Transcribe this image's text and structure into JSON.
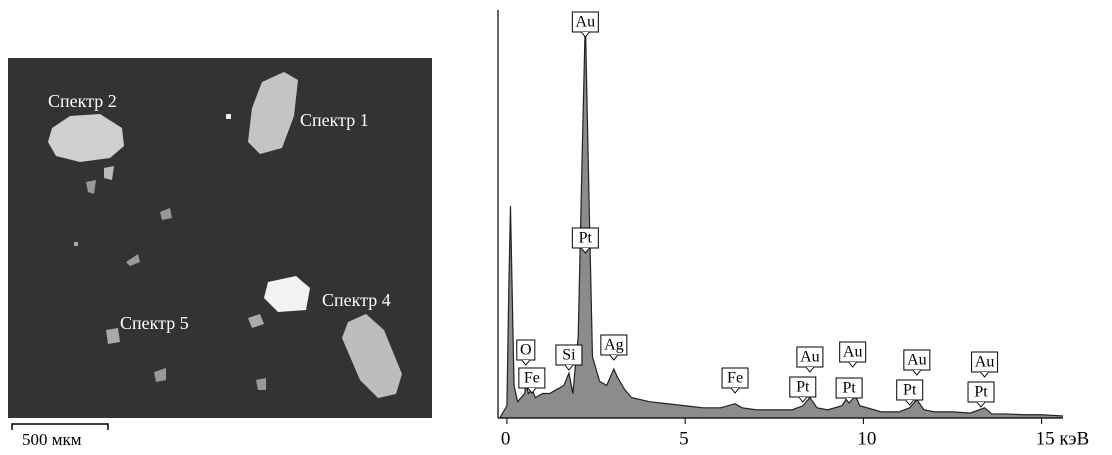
{
  "image": {
    "labels": [
      "Спектр 2",
      "Спектр 1",
      "Спектр 4",
      "Спектр 5"
    ],
    "scale_bar": "500 мкм"
  },
  "chart_data": {
    "type": "area",
    "x": [
      -0.2,
      0,
      0.05,
      0.1,
      0.15,
      0.2,
      0.3,
      0.4,
      0.5,
      0.53,
      0.6,
      0.7,
      0.8,
      1.0,
      1.2,
      1.4,
      1.6,
      1.74,
      1.85,
      2.0,
      2.1,
      2.2,
      2.3,
      2.4,
      2.6,
      2.8,
      3.0,
      3.1,
      3.3,
      3.5,
      4.0,
      4.5,
      5.0,
      5.5,
      6.0,
      6.4,
      6.6,
      7.0,
      7.5,
      8.0,
      8.3,
      8.5,
      8.7,
      9.0,
      9.4,
      9.7,
      9.9,
      10.5,
      11.0,
      11.3,
      11.5,
      11.7,
      12.0,
      12.5,
      13.0,
      13.4,
      13.6,
      14.0,
      14.5,
      15.0,
      15.6
    ],
    "values": [
      0,
      3,
      30,
      52,
      30,
      8,
      4,
      5,
      6,
      9,
      6,
      7,
      5,
      6,
      6,
      7,
      8,
      11,
      6,
      20,
      60,
      98,
      55,
      15,
      9,
      8,
      12,
      10,
      7,
      5,
      4,
      3.5,
      3,
      2.5,
      2.5,
      3.5,
      2.5,
      2,
      2,
      2,
      3,
      5,
      2.5,
      2,
      3,
      7,
      3,
      1.5,
      1.5,
      2.5,
      4.5,
      2,
      1.5,
      1.5,
      1.2,
      2.5,
      1,
      1,
      0.8,
      0.8,
      0.5
    ],
    "color": "#8c8c8c",
    "xlim": [
      -0.25,
      15.6
    ],
    "xticks": [
      0,
      5,
      10,
      {
        "value": 15,
        "label": "15 кэВ"
      }
    ],
    "ylim": [
      0,
      100
    ],
    "annotations": [
      {
        "text": "Au",
        "x": 2.2
      },
      {
        "text": "Pt",
        "x": 2.2
      },
      {
        "text": "O",
        "x": 0.53
      },
      {
        "text": "Fe",
        "x": 0.7
      },
      {
        "text": "Si",
        "x": 1.74
      },
      {
        "text": "Ag",
        "x": 3.0
      },
      {
        "text": "Fe",
        "x": 6.4
      },
      {
        "text": "Au",
        "x": 8.5
      },
      {
        "text": "Pt",
        "x": 8.3
      },
      {
        "text": "Au",
        "x": 9.7
      },
      {
        "text": "Pt",
        "x": 9.6
      },
      {
        "text": "Au",
        "x": 11.5
      },
      {
        "text": "Pt",
        "x": 11.3
      },
      {
        "text": "Au",
        "x": 13.4
      },
      {
        "text": "Pt",
        "x": 13.3
      }
    ]
  }
}
